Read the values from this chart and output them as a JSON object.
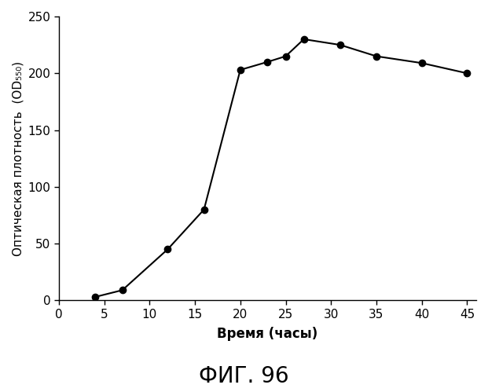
{
  "x": [
    4,
    7,
    12,
    16,
    20,
    23,
    25,
    27,
    31,
    35,
    40,
    45
  ],
  "y": [
    3,
    9,
    45,
    80,
    203,
    210,
    215,
    230,
    225,
    215,
    209,
    200
  ],
  "xlabel": "Время (часы)",
  "ylabel": "Оптическая плотность  (OD₅₅₀)",
  "caption": "ФИГ. 96",
  "xlim": [
    0,
    46
  ],
  "ylim": [
    0,
    250
  ],
  "xticks": [
    0,
    5,
    10,
    15,
    20,
    25,
    30,
    35,
    40,
    45
  ],
  "yticks": [
    0,
    50,
    100,
    150,
    200,
    250
  ],
  "line_color": "#000000",
  "marker_color": "#000000",
  "bg_color": "#ffffff",
  "caption_fontsize": 20,
  "ylabel_fontsize": 11,
  "xlabel_fontsize": 12,
  "tick_fontsize": 11
}
